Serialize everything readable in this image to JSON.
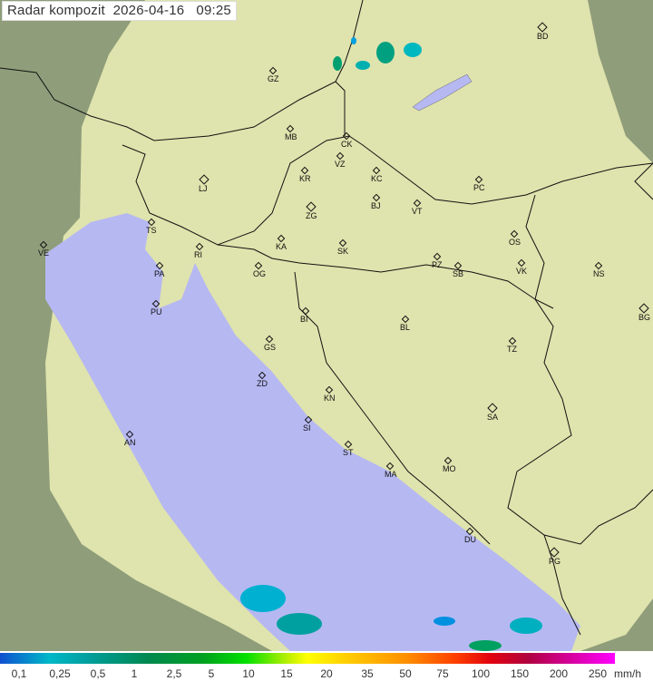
{
  "title": "Radar kompozit  2026-04-16   09:25",
  "colors": {
    "land": "#d8dfa8",
    "outside": "#8a9a78",
    "sea": "#b4b6f0",
    "border": "#111111",
    "echo_light": "#00b0c0",
    "echo_strong": "#00a060"
  },
  "cities": [
    {
      "code": "GZ",
      "big": false
    },
    {
      "code": "BD",
      "big": true
    },
    {
      "code": "MB",
      "big": false
    },
    {
      "code": "CK",
      "big": false
    },
    {
      "code": "VZ",
      "big": false
    },
    {
      "code": "KR",
      "big": false
    },
    {
      "code": "KC",
      "big": false
    },
    {
      "code": "PC",
      "big": false
    },
    {
      "code": "LJ",
      "big": true
    },
    {
      "code": "ZG",
      "big": true
    },
    {
      "code": "BJ",
      "big": false
    },
    {
      "code": "VT",
      "big": false
    },
    {
      "code": "TS",
      "big": false
    },
    {
      "code": "VE",
      "big": false
    },
    {
      "code": "RI",
      "big": false
    },
    {
      "code": "KA",
      "big": false
    },
    {
      "code": "SK",
      "big": false
    },
    {
      "code": "OS",
      "big": false
    },
    {
      "code": "PA",
      "big": false
    },
    {
      "code": "OG",
      "big": false
    },
    {
      "code": "PZ",
      "big": false
    },
    {
      "code": "SB",
      "big": false
    },
    {
      "code": "VK",
      "big": false
    },
    {
      "code": "NS",
      "big": false
    },
    {
      "code": "PU",
      "big": false
    },
    {
      "code": "BI",
      "big": false
    },
    {
      "code": "BL",
      "big": false
    },
    {
      "code": "BG",
      "big": true
    },
    {
      "code": "GS",
      "big": false
    },
    {
      "code": "TZ",
      "big": false
    },
    {
      "code": "ZD",
      "big": false
    },
    {
      "code": "KN",
      "big": false
    },
    {
      "code": "SA",
      "big": true
    },
    {
      "code": "SI",
      "big": false
    },
    {
      "code": "AN",
      "big": false
    },
    {
      "code": "ST",
      "big": false
    },
    {
      "code": "MO",
      "big": false
    },
    {
      "code": "MA",
      "big": false
    },
    {
      "code": "DU",
      "big": false
    },
    {
      "code": "PG",
      "big": true
    }
  ],
  "legend": {
    "labels": [
      "0,1",
      "0,25",
      "0,5",
      "1",
      "2,5",
      "5",
      "10",
      "15",
      "20",
      "35",
      "50",
      "75",
      "100",
      "150",
      "200",
      "250"
    ],
    "unit": "mm/h"
  }
}
